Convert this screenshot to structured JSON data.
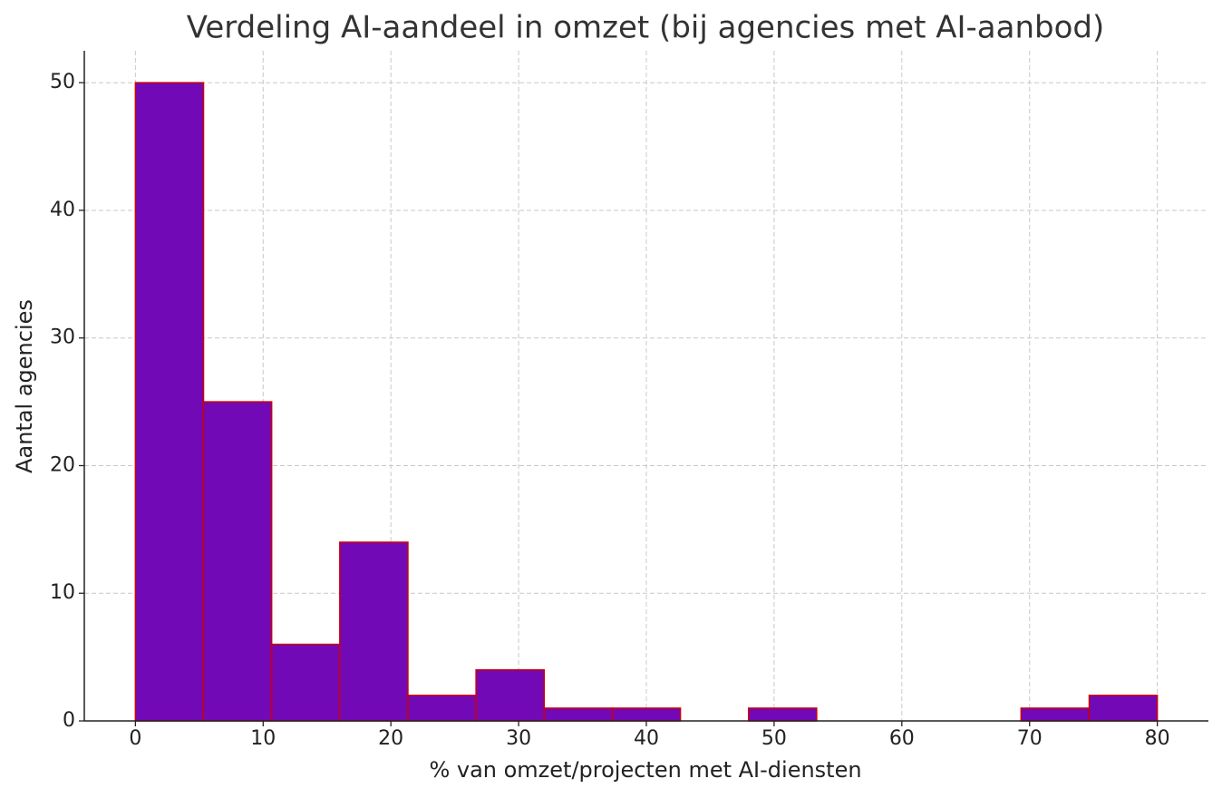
{
  "chart_data": {
    "type": "histogram",
    "title": "Verdeling AI-aandeel in omzet (bij agencies met AI-aanbod)",
    "x_label": "% van omzet/projecten met AI-diensten",
    "y_label": "Aantal agencies",
    "bins": [
      0,
      5.333,
      10.667,
      16,
      21.333,
      26.667,
      32,
      37.333,
      42.667,
      48,
      53.333,
      58.667,
      64,
      69.333,
      74.667,
      80
    ],
    "counts": [
      50,
      25,
      6,
      14,
      2,
      4,
      1,
      1,
      0,
      1,
      0,
      0,
      0,
      1,
      2
    ],
    "color": "#7209b7",
    "edgecolor": "#cc0000",
    "xlim": [
      -4,
      84
    ],
    "ylim": [
      0,
      52.5
    ],
    "xticks": [
      0,
      10,
      20,
      30,
      40,
      50,
      60,
      70,
      80
    ],
    "yticks": [
      0,
      10,
      20,
      30,
      40,
      50
    ],
    "grid": true
  }
}
